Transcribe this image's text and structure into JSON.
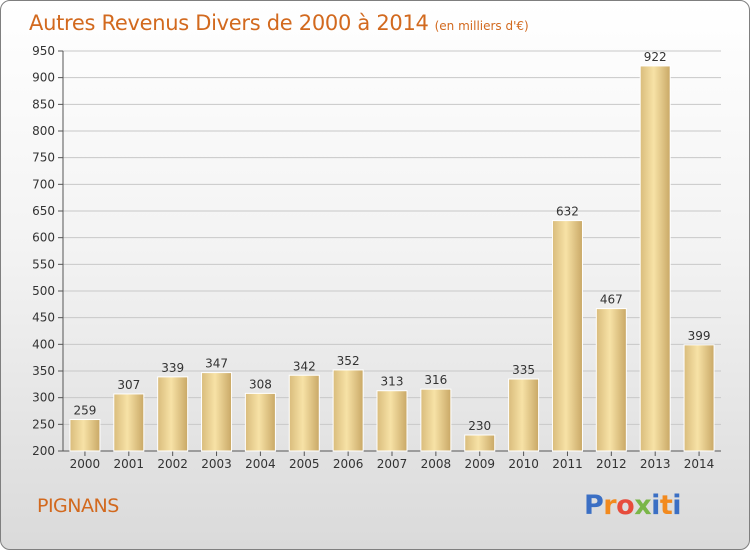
{
  "title": "Autres Revenus Divers de 2000 à 2014",
  "unit_note": "(en milliers d'€)",
  "town": "PIGNANS",
  "logo": {
    "text": "Proxiti",
    "colors": [
      "#3b6fc4",
      "#f28a1e",
      "#e74c3c",
      "#7ab648",
      "#3b6fc4",
      "#f28a1e",
      "#3b6fc4"
    ]
  },
  "colors": {
    "title": "#d2691e",
    "bar_light": "#f7e2a6",
    "bar_dark": "#cfae6a"
  },
  "chart_data": {
    "type": "bar",
    "categories": [
      "2000",
      "2001",
      "2002",
      "2003",
      "2004",
      "2005",
      "2006",
      "2007",
      "2008",
      "2009",
      "2010",
      "2011",
      "2012",
      "2013",
      "2014"
    ],
    "values": [
      259,
      307,
      339,
      347,
      308,
      342,
      352,
      313,
      316,
      230,
      335,
      632,
      467,
      922,
      399
    ],
    "ylim": [
      200,
      950
    ],
    "yticks": [
      200,
      250,
      300,
      350,
      400,
      450,
      500,
      550,
      600,
      650,
      700,
      750,
      800,
      850,
      900,
      950
    ],
    "grid": true
  }
}
